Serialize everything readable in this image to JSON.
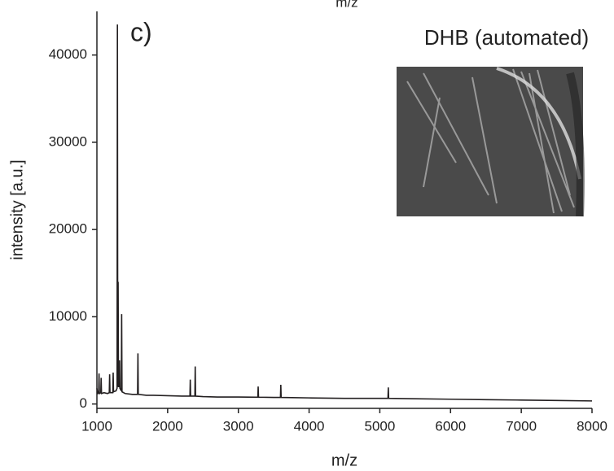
{
  "chart_data": {
    "type": "line",
    "top_label": "m/z",
    "panel_label": "c)",
    "annotation": "DHB (automated)",
    "x_label": "m/z",
    "y_label": "intensity [a.u.]",
    "color": "#231f20",
    "xlim": [
      1000,
      8000
    ],
    "xticks": [
      1000,
      2000,
      3000,
      4000,
      5000,
      6000,
      7000,
      8000
    ],
    "ylim": [
      -500,
      45000
    ],
    "yticks": [
      0,
      10000,
      20000,
      30000,
      40000
    ],
    "series": [
      {
        "name": "DHB (automated)",
        "color": "#231f20",
        "x": [
          1000,
          1010,
          1025,
          1030,
          1035,
          1055,
          1060,
          1065,
          1100,
          1150,
          1175,
          1180,
          1185,
          1225,
          1230,
          1235,
          1270,
          1285,
          1290,
          1295,
          1298,
          1300,
          1305,
          1315,
          1320,
          1325,
          1345,
          1350,
          1355,
          1400,
          1500,
          1575,
          1580,
          1585,
          1700,
          1800,
          2000,
          2200,
          2315,
          2320,
          2325,
          2385,
          2390,
          2395,
          2500,
          2700,
          3000,
          3275,
          3280,
          3285,
          3500,
          3595,
          3600,
          3605,
          4000,
          4500,
          5000,
          5115,
          5120,
          5125,
          5500,
          6000,
          6500,
          7000,
          7500,
          8000
        ],
        "values": [
          1800,
          1200,
          1300,
          3500,
          1200,
          1300,
          3000,
          1200,
          1300,
          1200,
          1300,
          3400,
          1300,
          1300,
          3600,
          1400,
          1500,
          1800,
          43500,
          2000,
          5000,
          14000,
          2000,
          2000,
          5000,
          1800,
          1500,
          10300,
          1400,
          1200,
          1100,
          1100,
          5800,
          1100,
          1000,
          1000,
          950,
          900,
          900,
          2800,
          900,
          900,
          4300,
          900,
          850,
          800,
          800,
          780,
          2000,
          780,
          750,
          750,
          2200,
          750,
          700,
          650,
          650,
          650,
          1900,
          650,
          600,
          550,
          500,
          450,
          400,
          350
        ]
      }
    ]
  }
}
